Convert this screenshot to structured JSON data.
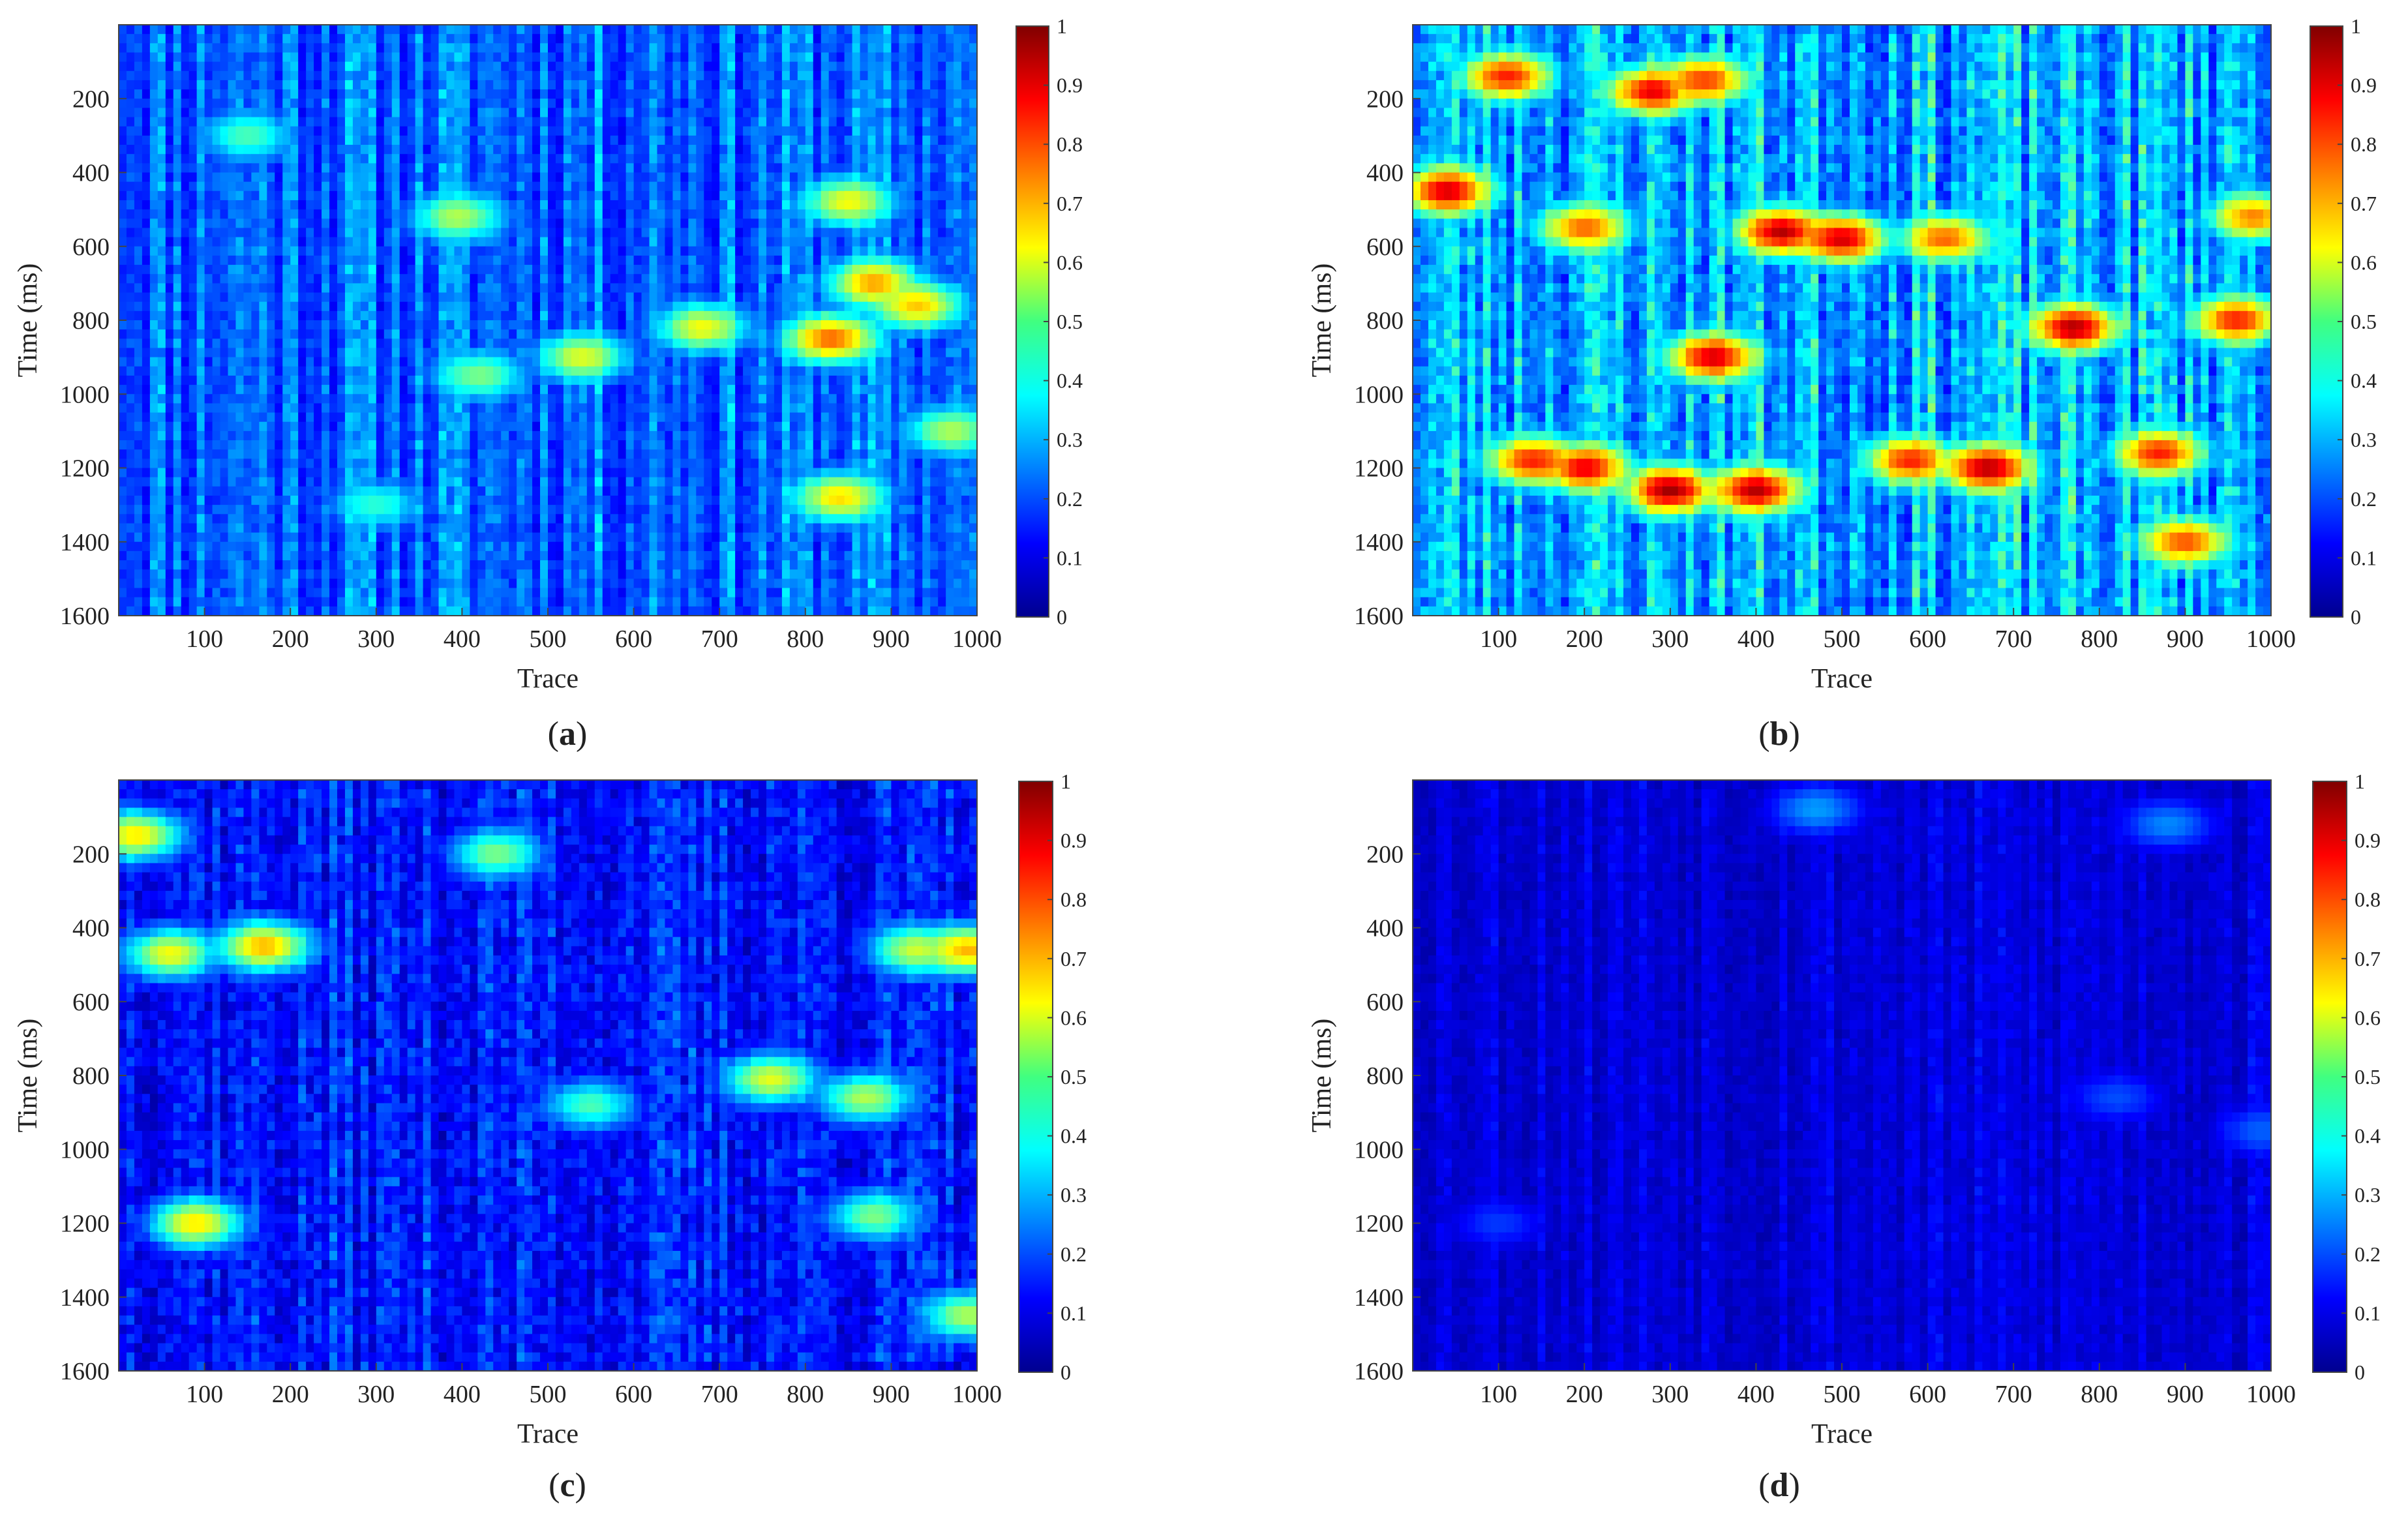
{
  "chart_data": [
    {
      "type": "heatmap",
      "panel_label": "a",
      "xlabel": "Trace",
      "ylabel": "Time (ms)",
      "xlim": [
        0,
        1000
      ],
      "ylim": [
        0,
        1600
      ],
      "y_reversed": true,
      "x_ticks": [
        100,
        200,
        300,
        400,
        500,
        600,
        700,
        800,
        900,
        1000
      ],
      "y_ticks": [
        200,
        400,
        600,
        800,
        1000,
        1200,
        1400,
        1600
      ],
      "colorbar_ticks": [
        0,
        0.1,
        0.2,
        0.3,
        0.4,
        0.5,
        0.6,
        0.7,
        0.8,
        0.9,
        1
      ],
      "colorbar_tick_labels": [
        "0",
        "0.1",
        "0.2",
        "0.3",
        "0.4",
        "0.5",
        "0.6",
        "0.7",
        "0.8",
        "0.9",
        "1"
      ],
      "colormap": "jet",
      "value_range": [
        0,
        1
      ],
      "background_level": 0.25,
      "seed": 11,
      "grain": 0.6,
      "hotspots": [
        {
          "x": 830,
          "y": 850,
          "v": 0.78
        },
        {
          "x": 880,
          "y": 700,
          "v": 0.72
        },
        {
          "x": 930,
          "y": 760,
          "v": 0.68
        },
        {
          "x": 850,
          "y": 480,
          "v": 0.62
        },
        {
          "x": 840,
          "y": 1280,
          "v": 0.66
        },
        {
          "x": 680,
          "y": 820,
          "v": 0.62
        },
        {
          "x": 540,
          "y": 900,
          "v": 0.6
        },
        {
          "x": 420,
          "y": 950,
          "v": 0.5
        },
        {
          "x": 395,
          "y": 520,
          "v": 0.55
        },
        {
          "x": 970,
          "y": 1100,
          "v": 0.55
        },
        {
          "x": 150,
          "y": 300,
          "v": 0.45
        },
        {
          "x": 300,
          "y": 1300,
          "v": 0.42
        }
      ]
    },
    {
      "type": "heatmap",
      "panel_label": "b",
      "xlabel": "Trace",
      "ylabel": "Time (ms)",
      "xlim": [
        0,
        1000
      ],
      "ylim": [
        0,
        1600
      ],
      "y_reversed": true,
      "x_ticks": [
        100,
        200,
        300,
        400,
        500,
        600,
        700,
        800,
        900,
        1000
      ],
      "y_ticks": [
        200,
        400,
        600,
        800,
        1000,
        1200,
        1400,
        1600
      ],
      "colorbar_ticks": [
        0,
        0.1,
        0.2,
        0.3,
        0.4,
        0.5,
        0.6,
        0.7,
        0.8,
        0.9,
        1
      ],
      "colorbar_tick_labels": [
        "0",
        "0.1",
        "0.2",
        "0.3",
        "0.4",
        "0.5",
        "0.6",
        "0.7",
        "0.8",
        "0.9",
        "1"
      ],
      "colormap": "jet",
      "value_range": [
        0,
        1
      ],
      "background_level": 0.33,
      "seed": 23,
      "grain": 1.0,
      "hotspots": [
        {
          "x": 40,
          "y": 450,
          "v": 0.92
        },
        {
          "x": 110,
          "y": 140,
          "v": 0.85
        },
        {
          "x": 280,
          "y": 180,
          "v": 0.9
        },
        {
          "x": 340,
          "y": 150,
          "v": 0.82
        },
        {
          "x": 430,
          "y": 560,
          "v": 0.95
        },
        {
          "x": 500,
          "y": 580,
          "v": 0.92
        },
        {
          "x": 350,
          "y": 900,
          "v": 0.92
        },
        {
          "x": 300,
          "y": 1260,
          "v": 0.97
        },
        {
          "x": 400,
          "y": 1260,
          "v": 0.95
        },
        {
          "x": 200,
          "y": 1200,
          "v": 0.9
        },
        {
          "x": 140,
          "y": 1180,
          "v": 0.85
        },
        {
          "x": 580,
          "y": 1180,
          "v": 0.85
        },
        {
          "x": 670,
          "y": 1200,
          "v": 0.95
        },
        {
          "x": 770,
          "y": 820,
          "v": 0.95
        },
        {
          "x": 960,
          "y": 800,
          "v": 0.85
        },
        {
          "x": 870,
          "y": 1160,
          "v": 0.85
        },
        {
          "x": 900,
          "y": 1400,
          "v": 0.8
        },
        {
          "x": 980,
          "y": 520,
          "v": 0.75
        },
        {
          "x": 200,
          "y": 550,
          "v": 0.78
        },
        {
          "x": 620,
          "y": 580,
          "v": 0.78
        }
      ]
    },
    {
      "type": "heatmap",
      "panel_label": "c",
      "xlabel": "Trace",
      "ylabel": "Time (ms)",
      "xlim": [
        0,
        1000
      ],
      "ylim": [
        0,
        1600
      ],
      "y_reversed": true,
      "x_ticks": [
        100,
        200,
        300,
        400,
        500,
        600,
        700,
        800,
        900,
        1000
      ],
      "y_ticks": [
        200,
        400,
        600,
        800,
        1000,
        1200,
        1400,
        1600
      ],
      "colorbar_ticks": [
        0,
        0.1,
        0.2,
        0.3,
        0.4,
        0.5,
        0.6,
        0.7,
        0.8,
        0.9,
        1
      ],
      "colorbar_tick_labels": [
        "0",
        "0.1",
        "0.2",
        "0.3",
        "0.4",
        "0.5",
        "0.6",
        "0.7",
        "0.8",
        "0.9",
        "1"
      ],
      "colormap": "jet",
      "value_range": [
        0,
        1
      ],
      "background_level": 0.16,
      "seed": 37,
      "grain": 0.9,
      "hotspots": [
        {
          "x": 20,
          "y": 150,
          "v": 0.65
        },
        {
          "x": 60,
          "y": 470,
          "v": 0.62
        },
        {
          "x": 170,
          "y": 450,
          "v": 0.7
        },
        {
          "x": 90,
          "y": 1200,
          "v": 0.65
        },
        {
          "x": 760,
          "y": 810,
          "v": 0.6
        },
        {
          "x": 870,
          "y": 860,
          "v": 0.55
        },
        {
          "x": 930,
          "y": 460,
          "v": 0.58
        },
        {
          "x": 990,
          "y": 460,
          "v": 0.7
        },
        {
          "x": 880,
          "y": 1180,
          "v": 0.5
        },
        {
          "x": 990,
          "y": 1450,
          "v": 0.55
        },
        {
          "x": 550,
          "y": 880,
          "v": 0.45
        },
        {
          "x": 440,
          "y": 200,
          "v": 0.5
        }
      ]
    },
    {
      "type": "heatmap",
      "panel_label": "d",
      "xlabel": "Trace",
      "ylabel": "Time (ms)",
      "xlim": [
        0,
        1000
      ],
      "ylim": [
        0,
        1600
      ],
      "y_reversed": true,
      "x_ticks": [
        100,
        200,
        300,
        400,
        500,
        600,
        700,
        800,
        900,
        1000
      ],
      "y_ticks": [
        200,
        400,
        600,
        800,
        1000,
        1200,
        1400,
        1600
      ],
      "colorbar_ticks": [
        0,
        0.1,
        0.2,
        0.3,
        0.4,
        0.5,
        0.6,
        0.7,
        0.8,
        0.9,
        1
      ],
      "colorbar_tick_labels": [
        "0",
        "0.1",
        "0.2",
        "0.3",
        "0.4",
        "0.5",
        "0.6",
        "0.7",
        "0.8",
        "0.9",
        "1"
      ],
      "colormap": "jet",
      "value_range": [
        0,
        1
      ],
      "background_level": 0.1,
      "seed": 53,
      "grain": 0.35,
      "hotspots": [
        {
          "x": 470,
          "y": 80,
          "v": 0.28
        },
        {
          "x": 880,
          "y": 120,
          "v": 0.26
        },
        {
          "x": 990,
          "y": 950,
          "v": 0.22
        },
        {
          "x": 820,
          "y": 860,
          "v": 0.2
        },
        {
          "x": 100,
          "y": 1200,
          "v": 0.18
        }
      ]
    }
  ]
}
